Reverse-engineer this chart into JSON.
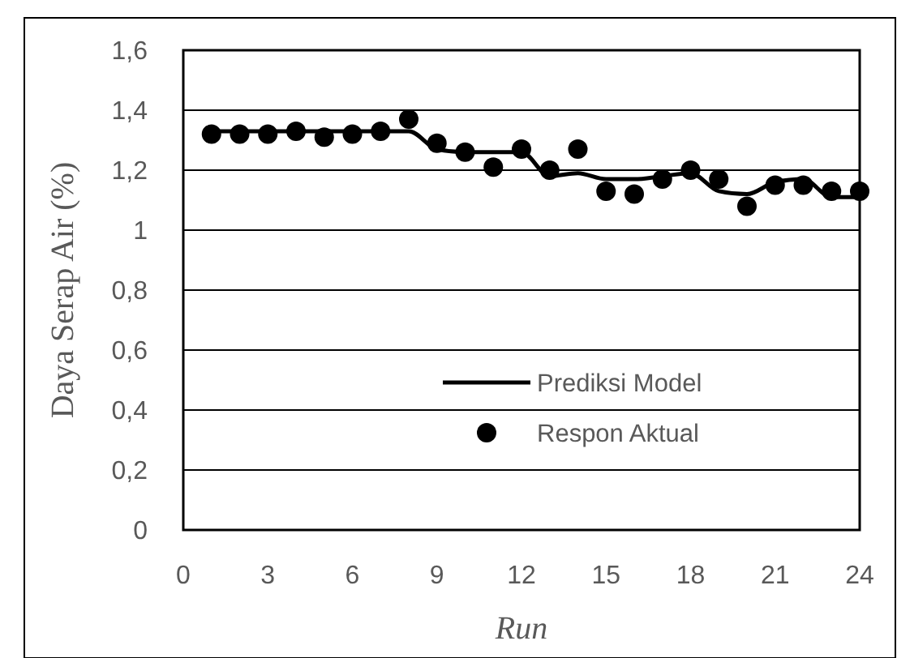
{
  "chart_data": {
    "type": "line",
    "xlabel": "Run",
    "ylabel": "Daya Serap Air (%)",
    "x": [
      1,
      2,
      3,
      4,
      5,
      6,
      7,
      8,
      9,
      10,
      11,
      12,
      13,
      14,
      15,
      16,
      17,
      18,
      19,
      20,
      21,
      22,
      23,
      24
    ],
    "series": [
      {
        "name": "Prediksi Model",
        "color": "#000000",
        "marker": "none",
        "line_style": "solid",
        "values": [
          1.33,
          1.33,
          1.33,
          1.33,
          1.33,
          1.33,
          1.33,
          1.33,
          1.27,
          1.26,
          1.26,
          1.26,
          1.18,
          1.19,
          1.17,
          1.17,
          1.18,
          1.19,
          1.13,
          1.12,
          1.16,
          1.17,
          1.11,
          1.11
        ]
      },
      {
        "name": "Respon Aktual",
        "type": "scatter",
        "color": "#000000",
        "marker": "circle",
        "values": [
          1.32,
          1.32,
          1.32,
          1.33,
          1.31,
          1.32,
          1.33,
          1.37,
          1.29,
          1.26,
          1.21,
          1.27,
          1.2,
          1.27,
          1.13,
          1.12,
          1.17,
          1.2,
          1.17,
          1.08,
          1.15,
          1.15,
          1.13,
          1.13
        ]
      }
    ],
    "xlim": [
      0,
      24
    ],
    "xticks": [
      0,
      3,
      6,
      9,
      12,
      15,
      18,
      21,
      24
    ],
    "ylim": [
      0,
      1.6
    ],
    "yticks": [
      {
        "value": 0,
        "label": "0"
      },
      {
        "value": 0.2,
        "label": "0,2"
      },
      {
        "value": 0.4,
        "label": "0,4"
      },
      {
        "value": 0.6,
        "label": "0,6"
      },
      {
        "value": 0.8,
        "label": "0,8"
      },
      {
        "value": 1,
        "label": "1"
      },
      {
        "value": 1.2,
        "label": "1,2"
      },
      {
        "value": 1.4,
        "label": "1,4"
      },
      {
        "value": 1.6,
        "label": "1,6"
      }
    ],
    "grid": "y",
    "legend": "bottom right"
  }
}
